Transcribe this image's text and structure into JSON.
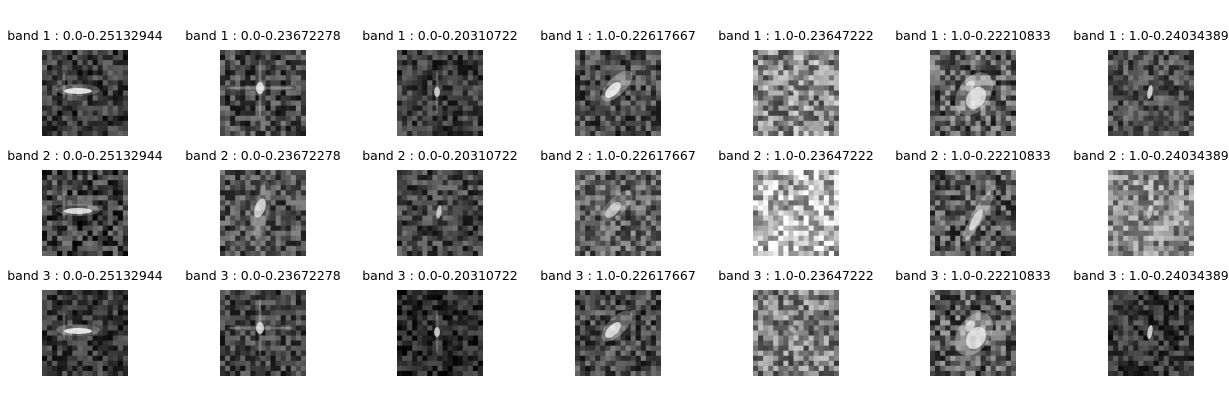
{
  "chart_data": {
    "type": "image-grid",
    "rows": 3,
    "cols": 7,
    "row_prefixes": [
      "band 1",
      "band 2",
      "band 3"
    ],
    "column_suffixes": [
      "0.0-0.25132944",
      "0.0-0.23672278",
      "0.0-0.20310722",
      "1.0-0.22617667",
      "1.0-0.23647222",
      "1.0-0.22210833",
      "1.0-0.24034389"
    ],
    "panels": [
      [
        {
          "title": "band 1 : 0.0-0.25132944",
          "background": "#3a3a3a",
          "noise": 0.2,
          "shape": "horizontal-streak",
          "brightness": 0.9
        },
        {
          "title": "band 1 : 0.0-0.23672278",
          "background": "#474747",
          "noise": 0.22,
          "shape": "cross",
          "brightness": 0.8
        },
        {
          "title": "band 1 : 0.0-0.20310722",
          "background": "#3c3c3c",
          "noise": 0.18,
          "shape": "vertical-streak",
          "brightness": 0.7
        },
        {
          "title": "band 1 : 1.0-0.22617667",
          "background": "#4a4a4a",
          "noise": 0.22,
          "shape": "diagonal-blob",
          "brightness": 0.85
        },
        {
          "title": "band 1 : 1.0-0.23647222",
          "background": "#8a8a8a",
          "noise": 0.3,
          "shape": "small-dot",
          "brightness": 0.3
        },
        {
          "title": "band 1 : 1.0-0.22210833",
          "background": "#5c5c5c",
          "noise": 0.28,
          "shape": "large-blob",
          "brightness": 0.85
        },
        {
          "title": "band 1 : 1.0-0.24034389",
          "background": "#4f4f4f",
          "noise": 0.2,
          "shape": "small-vertical",
          "brightness": 0.8
        }
      ],
      [
        {
          "title": "band 2 : 0.0-0.25132944",
          "background": "#3f3f3f",
          "noise": 0.24,
          "shape": "horizontal-streak",
          "brightness": 0.85
        },
        {
          "title": "band 2 : 0.0-0.23672278",
          "background": "#4e4e4e",
          "noise": 0.22,
          "shape": "vertical-band",
          "brightness": 0.75
        },
        {
          "title": "band 2 : 0.0-0.20310722",
          "background": "#444444",
          "noise": 0.2,
          "shape": "small-vertical",
          "brightness": 0.7
        },
        {
          "title": "band 2 : 1.0-0.22617667",
          "background": "#606060",
          "noise": 0.24,
          "shape": "diagonal-blob",
          "brightness": 0.6
        },
        {
          "title": "band 2 : 1.0-0.23647222",
          "background": "#b8b8b8",
          "noise": 0.35,
          "shape": "none",
          "brightness": 0.0
        },
        {
          "title": "band 2 : 1.0-0.22210833",
          "background": "#555555",
          "noise": 0.26,
          "shape": "diagonal-streak",
          "brightness": 0.75
        },
        {
          "title": "band 2 : 1.0-0.24034389",
          "background": "#8c8c8c",
          "noise": 0.26,
          "shape": "small-vertical",
          "brightness": 0.6
        }
      ],
      [
        {
          "title": "band 3 : 0.0-0.25132944",
          "background": "#383838",
          "noise": 0.18,
          "shape": "horizontal-streak",
          "brightness": 0.9
        },
        {
          "title": "band 3 : 0.0-0.23672278",
          "background": "#424242",
          "noise": 0.2,
          "shape": "cross",
          "brightness": 0.75
        },
        {
          "title": "band 3 : 0.0-0.20310722",
          "background": "#2a2a2a",
          "noise": 0.16,
          "shape": "vertical-streak",
          "brightness": 0.7
        },
        {
          "title": "band 3 : 1.0-0.22617667",
          "background": "#474747",
          "noise": 0.22,
          "shape": "diagonal-blob",
          "brightness": 0.8
        },
        {
          "title": "band 3 : 1.0-0.23647222",
          "background": "#7e7e7e",
          "noise": 0.28,
          "shape": "small-dot",
          "brightness": 0.35
        },
        {
          "title": "band 3 : 1.0-0.22210833",
          "background": "#5a5a5a",
          "noise": 0.28,
          "shape": "large-blob",
          "brightness": 0.9
        },
        {
          "title": "band 3 : 1.0-0.24034389",
          "background": "#373737",
          "noise": 0.18,
          "shape": "small-vertical",
          "brightness": 0.8
        }
      ]
    ]
  }
}
